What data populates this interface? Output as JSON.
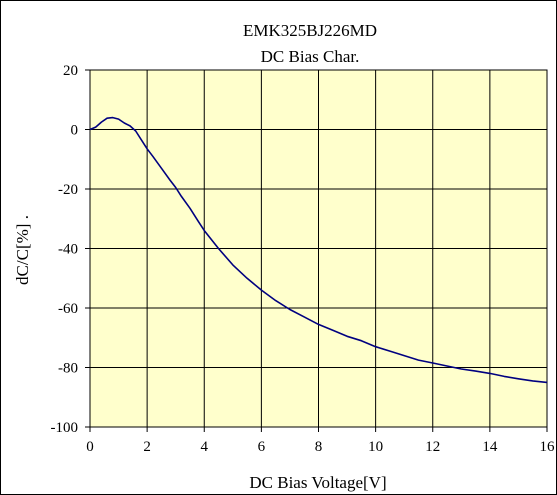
{
  "chart_data": {
    "type": "line",
    "title": "EMK325BJ226MD",
    "subtitle": "DC Bias Char.",
    "xlabel": "DC Bias Voltage[V]",
    "ylabel": "dC/C[%] .",
    "xlim": [
      0,
      16
    ],
    "ylim": [
      -100,
      20
    ],
    "x_ticks": [
      0,
      2,
      4,
      6,
      8,
      10,
      12,
      14,
      16
    ],
    "y_ticks": [
      20,
      0,
      -20,
      -40,
      -60,
      -80,
      -100
    ],
    "grid": true,
    "legend": "none",
    "colors": {
      "plot_background": "#ffffcc",
      "line": "#000080",
      "grid": "#000000"
    },
    "series": [
      {
        "x": [
          0,
          0.2,
          0.4,
          0.6,
          0.8,
          1.0,
          1.2,
          1.4,
          1.6,
          1.8,
          2.0,
          2.2,
          2.5,
          2.8,
          3.0,
          3.2,
          3.5,
          3.8,
          4.0,
          4.5,
          5.0,
          5.5,
          6.0,
          6.5,
          7.0,
          7.5,
          8.0,
          8.5,
          9.0,
          9.5,
          10.0,
          10.5,
          11.0,
          11.5,
          12.0,
          12.5,
          13.0,
          13.5,
          14.0,
          14.5,
          15.0,
          15.5,
          16.0
        ],
        "y": [
          0,
          0.8,
          2.5,
          3.8,
          4.0,
          3.5,
          2.2,
          1.2,
          -0.5,
          -3.5,
          -6.5,
          -9,
          -13,
          -17,
          -19.5,
          -22.5,
          -26.5,
          -31,
          -34,
          -40,
          -45.5,
          -50,
          -54,
          -57.5,
          -60.5,
          -63,
          -65.5,
          -67.5,
          -69.5,
          -71,
          -73,
          -74.5,
          -76,
          -77.5,
          -78.5,
          -79.5,
          -80.5,
          -81.2,
          -82,
          -83,
          -83.8,
          -84.5,
          -85
        ]
      }
    ]
  }
}
